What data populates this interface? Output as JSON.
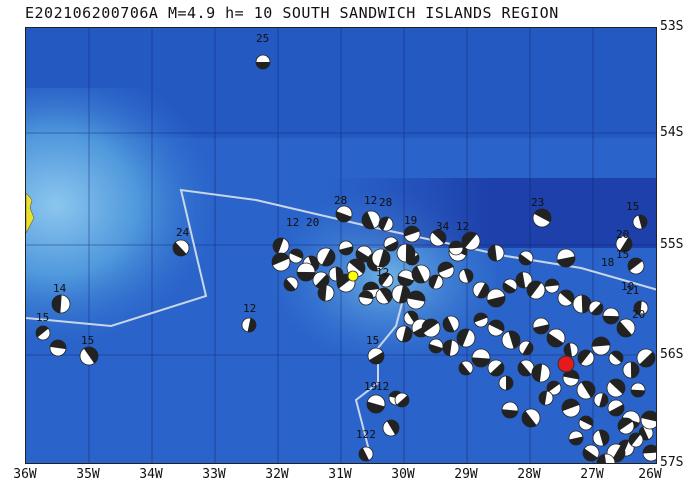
{
  "title": "E202106200706A  M=4.9  h= 10 SOUTH SANDWICH ISLANDS REGION",
  "lat_labels": [
    "53S",
    "54S",
    "55S",
    "56S",
    "57S"
  ],
  "lon_labels": [
    "36W",
    "35W",
    "34W",
    "33W",
    "32W",
    "31W",
    "30W",
    "29W",
    "28W",
    "27W",
    "26W"
  ],
  "depth_labels": [
    "25",
    "28",
    "12",
    "28",
    "19",
    "23",
    "15",
    "20",
    "24",
    "12",
    "20",
    "14",
    "15",
    "15",
    "12",
    "15",
    "19",
    "12",
    "122",
    "34",
    "12",
    "10",
    "18",
    "12",
    "15",
    "21",
    "20"
  ],
  "colors": {
    "ocean_deep": "#1f43b8",
    "ocean_mid": "#2f6fd0",
    "ocean_shallow": "#74b8ea",
    "event_highlight": "#e41a1c",
    "epicenter_marker": "#ffff00",
    "plate_boundary": "#c9d6e8"
  }
}
